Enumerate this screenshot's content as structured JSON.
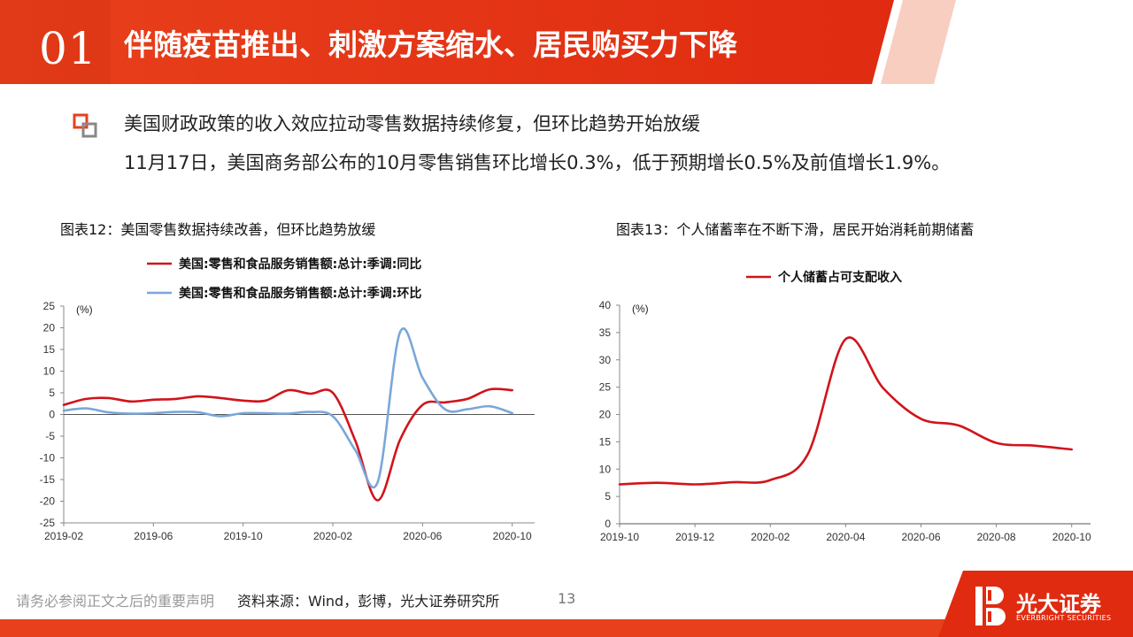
{
  "header": {
    "section_number": "01",
    "title": "伴随疫苗推出、刺激方案缩水、居民购买力下降"
  },
  "bullet": {
    "heading": "美国财政政策的收入效应拉动零售数据持续修复，但环比趋势开始放缓",
    "body": "11月17日，美国商务部公布的10月零售销售环比增长0.3%，低于预期增长0.5%及前值增长1.9%。"
  },
  "footer": {
    "disclaimer": "请务必参阅正文之后的重要声明",
    "source": "资料来源：Wind，彭博，光大证券研究所",
    "page": "13",
    "logo_cn": "光大证券",
    "logo_en": "EVERBRIGHT SECURITIES"
  },
  "colors": {
    "brand_red": "#e63312",
    "series_red": "#d0141b",
    "series_blue": "#7ba6d9"
  },
  "chart_data": [
    {
      "type": "line",
      "title": "图表12：美国零售数据持续改善，但环比趋势放缓",
      "unit": "(%)",
      "xlabel": "",
      "ylabel": "",
      "ylim": [
        -25,
        25
      ],
      "yticks": [
        25,
        20,
        15,
        10,
        5,
        0,
        -5,
        -10,
        -15,
        -20,
        -25
      ],
      "xticks": [
        "2019-02",
        "2019-06",
        "2019-10",
        "2020-02",
        "2020-06",
        "2020-10"
      ],
      "legend_position": "top",
      "x": [
        "2019-02",
        "2019-03",
        "2019-04",
        "2019-05",
        "2019-06",
        "2019-07",
        "2019-08",
        "2019-09",
        "2019-10",
        "2019-11",
        "2019-12",
        "2020-01",
        "2020-02",
        "2020-03",
        "2020-04",
        "2020-05",
        "2020-06",
        "2020-07",
        "2020-08",
        "2020-09",
        "2020-10"
      ],
      "series": [
        {
          "name": "美国:零售和食品服务销售额:总计:季调:同比",
          "color": "#d0141b",
          "values": [
            2.2,
            3.6,
            3.8,
            3.0,
            3.4,
            3.6,
            4.2,
            3.8,
            3.2,
            3.2,
            5.6,
            4.8,
            5.0,
            -6.0,
            -19.8,
            -5.8,
            2.2,
            2.8,
            3.6,
            5.8,
            5.6
          ]
        },
        {
          "name": "美国:零售和食品服务销售额:总计:季调:环比",
          "color": "#7ba6d9",
          "values": [
            0.9,
            1.4,
            0.5,
            0.2,
            0.3,
            0.6,
            0.5,
            -0.4,
            0.3,
            0.3,
            0.2,
            0.6,
            -0.4,
            -8.2,
            -15.6,
            19.0,
            8.5,
            1.2,
            1.2,
            1.9,
            0.3
          ]
        }
      ]
    },
    {
      "type": "line",
      "title": "图表13：个人储蓄率在不断下滑，居民开始消耗前期储蓄",
      "unit": "(%)",
      "xlabel": "",
      "ylabel": "",
      "ylim": [
        0,
        40
      ],
      "yticks": [
        40,
        35,
        30,
        25,
        20,
        15,
        10,
        5,
        0
      ],
      "xticks": [
        "2019-10",
        "2019-12",
        "2020-02",
        "2020-04",
        "2020-06",
        "2020-08",
        "2020-10"
      ],
      "legend_position": "top",
      "x": [
        "2019-10",
        "2019-11",
        "2019-12",
        "2020-01",
        "2020-02",
        "2020-03",
        "2020-04",
        "2020-05",
        "2020-06",
        "2020-07",
        "2020-08",
        "2020-09",
        "2020-10"
      ],
      "series": [
        {
          "name": "个人储蓄占可支配收入",
          "color": "#d0141b",
          "values": [
            7.2,
            7.5,
            7.2,
            7.6,
            8.0,
            12.8,
            33.8,
            24.8,
            19.2,
            18.0,
            14.8,
            14.3,
            13.6
          ]
        }
      ]
    }
  ]
}
